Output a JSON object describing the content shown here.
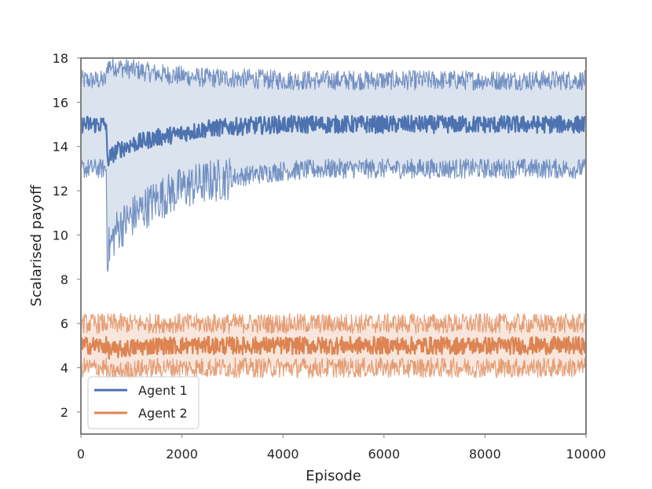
{
  "chart_data": {
    "type": "line",
    "xlabel": "Episode",
    "ylabel": "Scalarised payoff",
    "xlim": [
      0,
      10000
    ],
    "ylim": [
      1,
      18
    ],
    "xticks": [
      0,
      2000,
      4000,
      6000,
      8000,
      10000
    ],
    "yticks": [
      2,
      4,
      6,
      8,
      10,
      12,
      14,
      16,
      18
    ],
    "grid": false,
    "legend_position": "lower-left",
    "x": [
      0,
      250,
      500,
      520,
      700,
      1000,
      1500,
      2000,
      2500,
      3000,
      4000,
      5000,
      6000,
      7000,
      8000,
      9000,
      10000
    ],
    "series": [
      {
        "name": "Agent 1",
        "color": "#4c72b0",
        "mean": [
          15.0,
          15.0,
          15.0,
          13.4,
          13.8,
          14.1,
          14.4,
          14.6,
          14.8,
          14.9,
          15.0,
          15.0,
          15.0,
          15.0,
          15.0,
          15.0,
          15.0
        ],
        "lower": [
          13.0,
          13.0,
          13.0,
          9.2,
          10.2,
          10.8,
          11.6,
          12.1,
          12.4,
          12.6,
          12.9,
          13.0,
          13.0,
          13.0,
          13.0,
          13.0,
          13.0
        ],
        "upper": [
          17.0,
          17.0,
          17.0,
          17.7,
          17.6,
          17.5,
          17.3,
          17.2,
          17.1,
          17.1,
          17.0,
          17.0,
          17.0,
          17.0,
          17.0,
          17.0,
          17.0
        ]
      },
      {
        "name": "Agent 2",
        "color": "#dd8452",
        "mean": [
          5.0,
          5.0,
          5.0,
          4.8,
          4.8,
          4.9,
          5.0,
          5.0,
          5.0,
          5.0,
          5.0,
          5.0,
          5.0,
          5.0,
          5.0,
          5.0,
          5.0
        ],
        "lower": [
          4.0,
          4.0,
          4.0,
          3.7,
          3.8,
          3.9,
          4.0,
          4.0,
          4.0,
          4.0,
          4.0,
          4.0,
          4.0,
          4.0,
          4.0,
          4.0,
          4.0
        ],
        "upper": [
          6.0,
          6.0,
          6.0,
          6.0,
          6.0,
          6.0,
          6.0,
          6.0,
          6.0,
          6.0,
          6.0,
          6.0,
          6.0,
          6.0,
          6.0,
          6.0,
          6.0
        ]
      }
    ]
  }
}
